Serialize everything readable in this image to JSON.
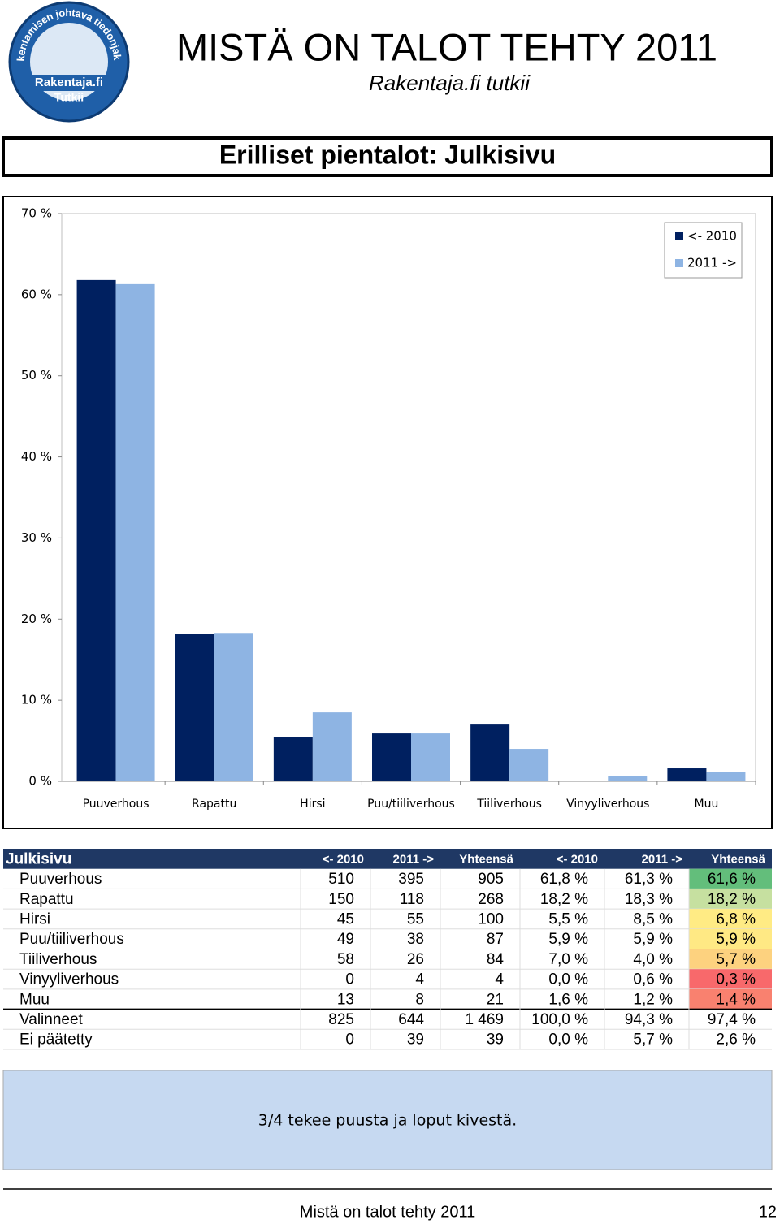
{
  "header": {
    "title": "MISTÄ ON TALOT TEHTY 2011",
    "subtitle": "Rakentaja.fi tutkii",
    "logo_ring": "Rakentamisen johtava tiedonjakaja",
    "logo_name": "Rakentaja.fi",
    "logo_tag": "Tutkii"
  },
  "section_title": "Erilliset pientalot: Julkisivu",
  "chart_data": {
    "type": "bar",
    "categories": [
      "Puuverhous",
      "Rapattu",
      "Hirsi",
      "Puu/tiiliverhous",
      "Tiiliverhous",
      "Vinyyliverhous",
      "Muu"
    ],
    "series": [
      {
        "name": "<- 2010",
        "color": "#002060",
        "values": [
          61.8,
          18.2,
          5.5,
          5.9,
          7.0,
          0.0,
          1.6
        ]
      },
      {
        "name": "2011 ->",
        "color": "#8eb4e3",
        "values": [
          61.3,
          18.3,
          8.5,
          5.9,
          4.0,
          0.6,
          1.2
        ]
      }
    ],
    "ylim": [
      0,
      70
    ],
    "yticks": [
      {
        "value": 0,
        "label": "0 %"
      },
      {
        "value": 10,
        "label": "10 %"
      },
      {
        "value": 20,
        "label": "20 %"
      },
      {
        "value": 30,
        "label": "30 %"
      },
      {
        "value": 40,
        "label": "40 %"
      },
      {
        "value": 50,
        "label": "50 %"
      },
      {
        "value": 60,
        "label": "60 %"
      },
      {
        "value": 70,
        "label": "70 %"
      }
    ],
    "legend": "top-right",
    "grid": false
  },
  "table": {
    "header": [
      "Julkisivu",
      "<- 2010",
      "2011 ->",
      "Yhteensä",
      "<- 2010",
      "2011 ->",
      "Yhteensä"
    ],
    "rows": [
      [
        "Puuverhous",
        "510",
        "395",
        "905",
        "61,8 %",
        "61,3 %",
        "61,6 %"
      ],
      [
        "Rapattu",
        "150",
        "118",
        "268",
        "18,2 %",
        "18,3 %",
        "18,2 %"
      ],
      [
        "Hirsi",
        "45",
        "55",
        "100",
        "5,5 %",
        "8,5 %",
        "6,8 %"
      ],
      [
        "Puu/tiiliverhous",
        "49",
        "38",
        "87",
        "5,9 %",
        "5,9 %",
        "5,9 %"
      ],
      [
        "Tiiliverhous",
        "58",
        "26",
        "84",
        "7,0 %",
        "4,0 %",
        "5,7 %"
      ],
      [
        "Vinyyliverhous",
        "0",
        "4",
        "4",
        "0,0 %",
        "0,6 %",
        "0,3 %"
      ],
      [
        "Muu",
        "13",
        "8",
        "21",
        "1,6 %",
        "1,2 %",
        "1,4 %"
      ],
      [
        "Valinneet",
        "825",
        "644",
        "1 469",
        "100,0 %",
        "94,3 %",
        "97,4 %"
      ],
      [
        "Ei päätetty",
        "0",
        "39",
        "39",
        "0,0 %",
        "5,7 %",
        "2,6 %"
      ]
    ],
    "highlight_colors": [
      "#63be7b",
      "#c6e0a0",
      "#ffeb84",
      "#ffe984",
      "#fdd27f",
      "#f8696b",
      "#f9816f"
    ]
  },
  "note": "3/4 tekee puusta ja loput kivestä.",
  "footer": {
    "text": "Mistä on talot tehty 2011",
    "page": "12"
  }
}
